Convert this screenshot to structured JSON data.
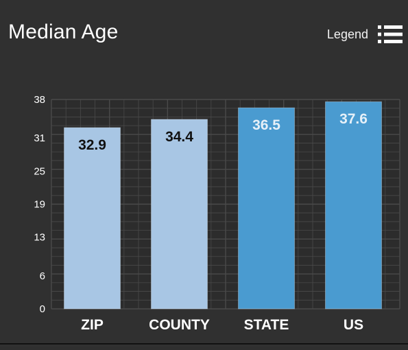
{
  "header": {
    "title": "Median Age",
    "legend_label": "Legend"
  },
  "colors": {
    "background": "#303030",
    "grid": "#4a4a4a",
    "bar_light": "#a8c6e4",
    "bar_dark": "#4a9bd0",
    "value_dark_text": "#111111",
    "value_light_text": "#e6f0f8"
  },
  "icons": {
    "legend": "list-icon"
  },
  "chart_data": {
    "type": "bar",
    "title": "Median Age",
    "categories": [
      "ZIP",
      "COUNTY",
      "STATE",
      "US"
    ],
    "values": [
      32.9,
      34.4,
      36.5,
      37.6
    ],
    "value_labels": [
      "32.9",
      "34.4",
      "36.5",
      "37.6"
    ],
    "bar_styles": [
      "light",
      "light",
      "dark",
      "dark"
    ],
    "yticks": [
      "0",
      "6",
      "13",
      "19",
      "25",
      "31",
      "38"
    ],
    "ylim": [
      0,
      38
    ],
    "xlabel": "",
    "ylabel": "",
    "grid": true,
    "legend": "hidden"
  }
}
